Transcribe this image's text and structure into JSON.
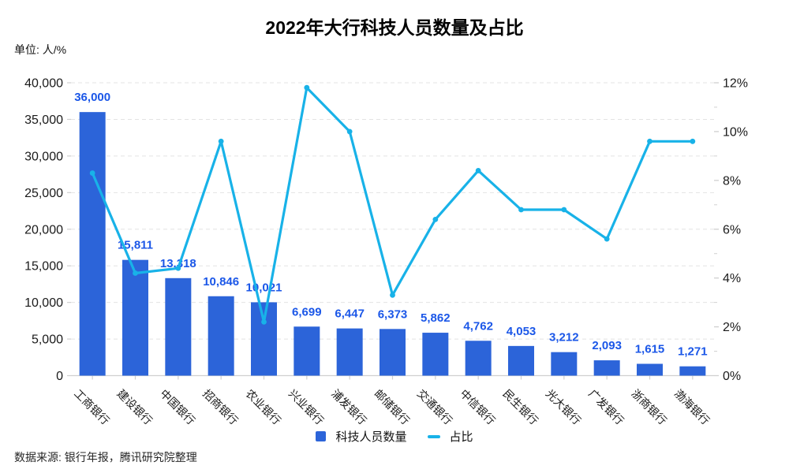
{
  "title": "2022年大行科技人员数量及占比",
  "unit_label": "单位: 人/%",
  "source_note": "数据来源: 银行年报，腾讯研究院整理",
  "legend": {
    "bar_label": "科技人员数量",
    "line_label": "占比"
  },
  "colors": {
    "bar": "#2c64d9",
    "bar_value_label": "#1b57e8",
    "line": "#18b2e8",
    "grid": "#e3e3e3",
    "axis_line": "#d0d0d0",
    "axis_text": "#1a1a1a",
    "background": "#ffffff"
  },
  "chart_data": {
    "type": "bar",
    "subtype": "dual-axis bar + line",
    "title": "2022年大行科技人员数量及占比",
    "categories": [
      "工商银行",
      "建设银行",
      "中国银行",
      "招商银行",
      "农业银行",
      "兴业银行",
      "浦发银行",
      "邮储银行",
      "交通银行",
      "中信银行",
      "民生银行",
      "光大银行",
      "广发银行",
      "浙商银行",
      "渤海银行"
    ],
    "series": [
      {
        "name": "科技人员数量",
        "type": "bar",
        "axis": "left",
        "values": [
          36000,
          15811,
          13318,
          10846,
          10021,
          6699,
          6447,
          6373,
          5862,
          4762,
          4053,
          3212,
          2093,
          1615,
          1271
        ],
        "labels": [
          "36,000",
          "15,811",
          "13,318",
          "10,846",
          "10,021",
          "6,699",
          "6,447",
          "6,373",
          "5,862",
          "4,762",
          "4,053",
          "3,212",
          "2,093",
          "1,615",
          "1,271"
        ]
      },
      {
        "name": "占比",
        "type": "line",
        "axis": "right",
        "values": [
          8.3,
          4.2,
          4.4,
          9.6,
          2.2,
          11.8,
          10.0,
          3.3,
          6.4,
          8.4,
          6.8,
          6.8,
          5.6,
          9.6,
          9.6
        ]
      }
    ],
    "left_axis": {
      "min": 0,
      "max": 40000,
      "step": 5000,
      "tick_labels": [
        "0",
        "5,000",
        "10,000",
        "15,000",
        "20,000",
        "25,000",
        "30,000",
        "35,000",
        "40,000"
      ]
    },
    "right_axis": {
      "min": 0,
      "max": 12,
      "step": 2,
      "minor_step": 1,
      "tick_labels": [
        "0%",
        "2%",
        "4%",
        "6%",
        "8%",
        "10%",
        "12%"
      ]
    },
    "grid": "dashed horizontal gridlines at left-axis steps",
    "legend_position": "bottom-center",
    "x_label_rotation_deg": 45
  }
}
